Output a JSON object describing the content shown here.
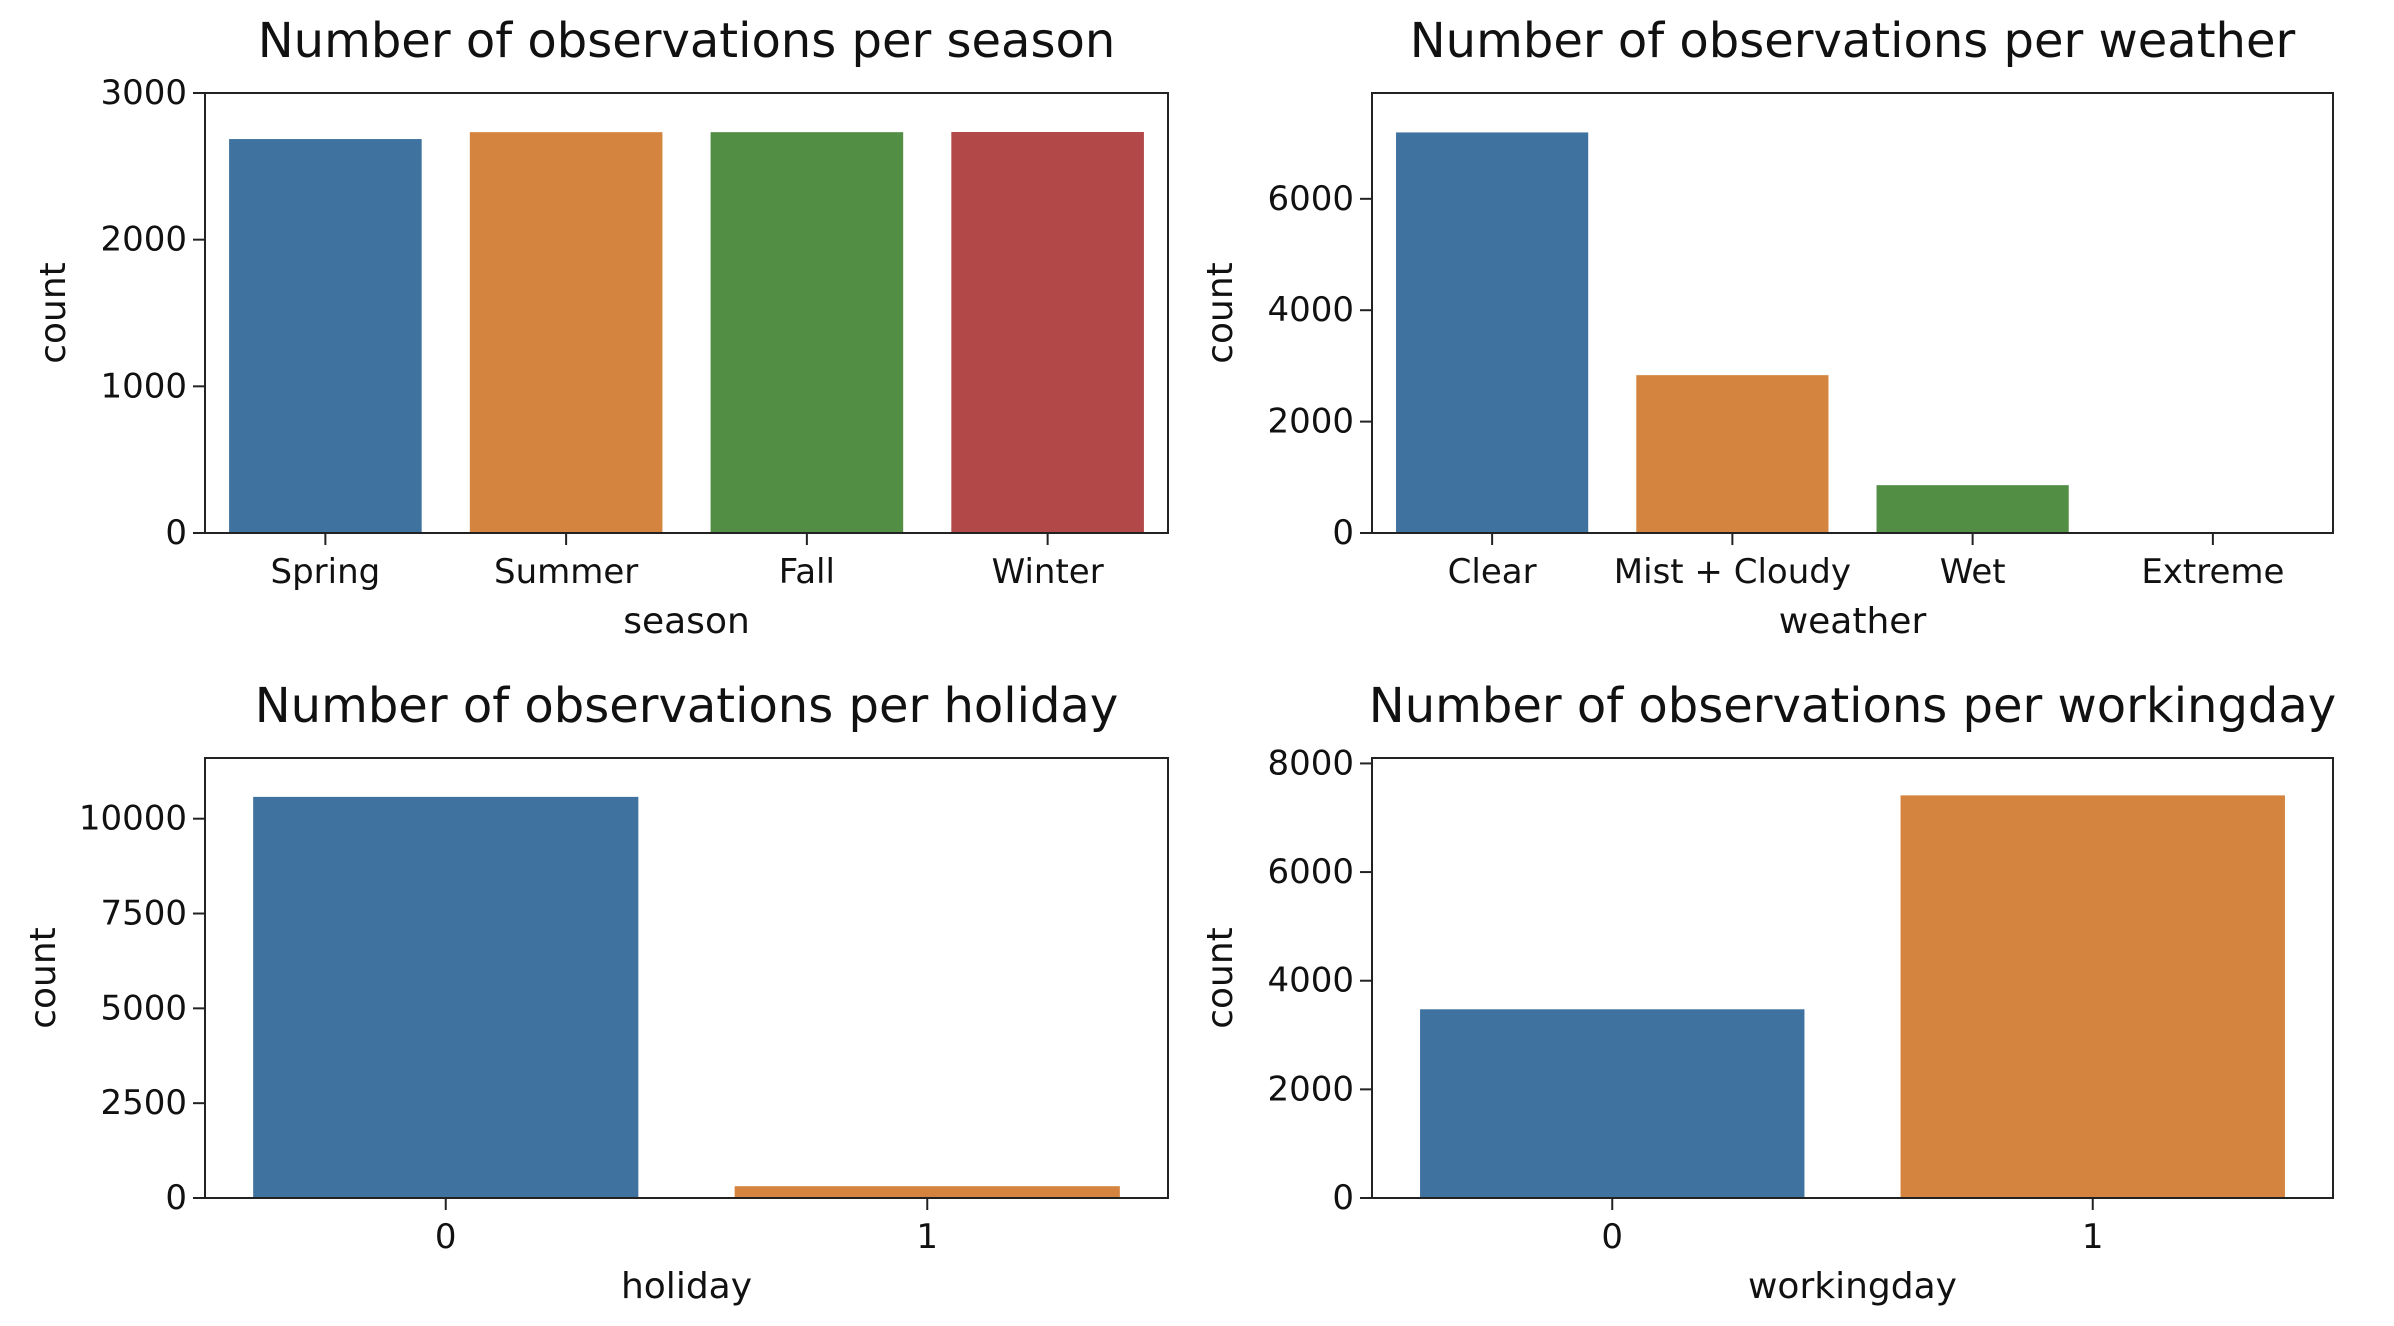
{
  "chart_data": [
    {
      "type": "bar",
      "title": "Number of observations per season",
      "xlabel": "season",
      "ylabel": "count",
      "categories": [
        "Spring",
        "Summer",
        "Fall",
        "Winter"
      ],
      "values": [
        2686,
        2733,
        2733,
        2734
      ],
      "colors": [
        "#3f729f",
        "#d4843f",
        "#528f45",
        "#b34848"
      ],
      "ylim": [
        0,
        3000
      ],
      "yticks": [
        0,
        1000,
        2000,
        3000
      ],
      "grid": false
    },
    {
      "type": "bar",
      "title": "Number of observations per weather",
      "xlabel": "weather",
      "ylabel": "count",
      "categories": [
        "Clear",
        "Mist + Cloudy",
        "Wet",
        "Extreme"
      ],
      "values": [
        7192,
        2834,
        859,
        1
      ],
      "colors": [
        "#3f729f",
        "#d4843f",
        "#528f45",
        "#b34848"
      ],
      "ylim": [
        0,
        7900
      ],
      "yticks": [
        0,
        2000,
        4000,
        6000
      ],
      "grid": false
    },
    {
      "type": "bar",
      "title": "Number of observations per holiday",
      "xlabel": "holiday",
      "ylabel": "count",
      "categories": [
        "0",
        "1"
      ],
      "values": [
        10575,
        311
      ],
      "colors": [
        "#3f729f",
        "#d4843f"
      ],
      "ylim": [
        0,
        11600
      ],
      "yticks": [
        0,
        2500,
        5000,
        7500,
        10000
      ],
      "grid": false
    },
    {
      "type": "bar",
      "title": "Number of observations per workingday",
      "xlabel": "workingday",
      "ylabel": "count",
      "categories": [
        "0",
        "1"
      ],
      "values": [
        3474,
        7412
      ],
      "colors": [
        "#3f729f",
        "#d4843f"
      ],
      "ylim": [
        0,
        8100
      ],
      "yticks": [
        0,
        2000,
        4000,
        6000,
        8000
      ],
      "grid": false
    }
  ]
}
